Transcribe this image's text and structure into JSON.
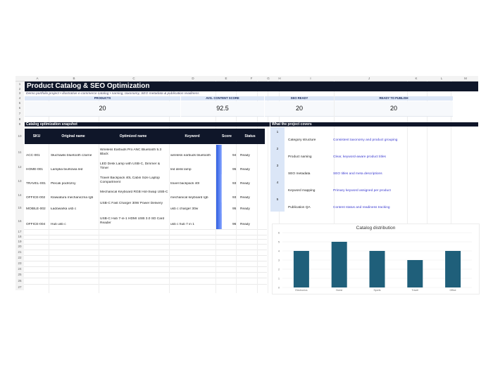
{
  "columns": [
    "A",
    "B",
    "C",
    "D",
    "E",
    "F",
    "G",
    "H",
    "I",
    "J",
    "K",
    "L",
    "M"
  ],
  "rows": [
    "1",
    "2",
    "3",
    "4",
    "5",
    "6",
    "7",
    "8",
    "9",
    "10",
    "11",
    "12",
    "13",
    "14",
    "15",
    "16",
    "17",
    "18",
    "19",
    "20",
    "21",
    "22",
    "23",
    "24",
    "25",
    "26",
    "27"
  ],
  "title": "Product Catalog & SEO Optimization",
  "subtitle": "Demo portfolio project • illustrative e-commerce catalog • naming, taxonomy, SEO metadata & publication readiness",
  "kpis": [
    {
      "label": "PRODUCTS",
      "value": "20"
    },
    {
      "label": "AVG. CONTENT SCORE",
      "value": "92.5"
    },
    {
      "label": "SEO READY",
      "value": "20"
    },
    {
      "label": "READY TO PUBLISH",
      "value": "20"
    }
  ],
  "snapshot": {
    "title": "Catalog optimization snapshot",
    "headers": {
      "sku": "SKU",
      "original": "Original name",
      "optimized": "Optimized name",
      "keyword": "Keyword",
      "score": "Score",
      "status": "Status"
    },
    "rows": [
      {
        "sku": "ACC-001",
        "original": "Słuchawki bluetooth czarne",
        "optimized": "Wireless Earbuds Pro ANC Bluetooth 5.3 Black",
        "keyword": "wireless earbuds bluetooth",
        "score": 94,
        "status": "Ready"
      },
      {
        "sku": "HOME-001",
        "original": "Lampka biurkowa led",
        "optimized": "LED Desk Lamp with USB-C, Dimmer & Timer",
        "keyword": "led desk lamp",
        "score": 95,
        "status": "Ready"
      },
      {
        "sku": "TRAVEL-001",
        "original": "Plecak podróżny",
        "optimized": "Travel Backpack 40L Cabin Size Laptop Compartment",
        "keyword": "travel backpack 40l",
        "score": 93,
        "status": "Ready"
      },
      {
        "sku": "OFFICE-002",
        "original": "Klawiatura mechaniczna rgb",
        "optimized": "Mechanical Keyboard RGB Hot-Swap USB-C",
        "keyword": "mechanical keyboard rgb",
        "score": 93,
        "status": "Ready"
      },
      {
        "sku": "MOBILE-002",
        "original": "Ładowarka usb c",
        "optimized": "USB-C Fast Charger 30W Power Delivery",
        "keyword": "usb c charger 30w",
        "score": 95,
        "status": "Ready"
      },
      {
        "sku": "OFFICE-004",
        "original": "Hub usb c",
        "optimized": "USB-C Hub 7-in-1 HDMI USB 3.0 SD Card Reader",
        "keyword": "usb c hub 7 in 1",
        "score": 96,
        "status": "Ready"
      }
    ]
  },
  "covers": {
    "title": "What the project covers",
    "items": [
      {
        "num": "1",
        "title": "Category structure",
        "desc": "Consistent taxonomy and product grouping"
      },
      {
        "num": "2",
        "title": "Product naming",
        "desc": "Clear, keyword-aware product titles"
      },
      {
        "num": "3",
        "title": "SEO metadata",
        "desc": "SEO titles and meta descriptions"
      },
      {
        "num": "4",
        "title": "Keyword mapping",
        "desc": "Primary keyword assigned per product"
      },
      {
        "num": "5",
        "title": "Publication QA",
        "desc": "Content status and readiness tracking"
      }
    ]
  },
  "chart_data": {
    "type": "bar",
    "title": "Catalog distribution",
    "categories": [
      "Electronics",
      "Home",
      "Sports",
      "Travel",
      "Office"
    ],
    "values": [
      4,
      5,
      4,
      3,
      4
    ],
    "ylim": [
      0,
      6
    ],
    "yticks": [
      "0",
      "1",
      "2",
      "3",
      "4",
      "5",
      "6"
    ],
    "color": "#1f5f7a"
  },
  "colors": {
    "dark": "#0f1629",
    "accent": "#dbe6f7",
    "score_gradient_start": "#2f5ee0"
  }
}
